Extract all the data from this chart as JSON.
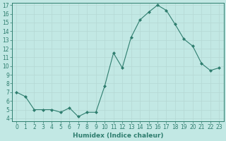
{
  "x": [
    0,
    1,
    2,
    3,
    4,
    5,
    6,
    7,
    8,
    9,
    10,
    11,
    12,
    13,
    14,
    15,
    16,
    17,
    18,
    19,
    20,
    21,
    22,
    23
  ],
  "y": [
    7.0,
    6.5,
    5.0,
    5.0,
    5.0,
    4.7,
    5.2,
    4.2,
    4.7,
    4.7,
    7.7,
    11.5,
    9.8,
    13.3,
    15.3,
    16.2,
    17.0,
    16.4,
    14.8,
    13.1,
    12.3,
    10.3,
    9.5,
    9.8
  ],
  "xlabel": "Humidex (Indice chaleur)",
  "line_color": "#2e7d6e",
  "marker_color": "#2e7d6e",
  "bg_color": "#c2e8e4",
  "grid_color": "#b4d8d4",
  "ylim": [
    4,
    17
  ],
  "xlim": [
    -0.5,
    23.5
  ],
  "yticks": [
    4,
    5,
    6,
    7,
    8,
    9,
    10,
    11,
    12,
    13,
    14,
    15,
    16,
    17
  ],
  "xticks": [
    0,
    1,
    2,
    3,
    4,
    5,
    6,
    7,
    8,
    9,
    10,
    11,
    12,
    13,
    14,
    15,
    16,
    17,
    18,
    19,
    20,
    21,
    22,
    23
  ],
  "tick_fontsize": 5.5,
  "xlabel_fontsize": 6.5
}
